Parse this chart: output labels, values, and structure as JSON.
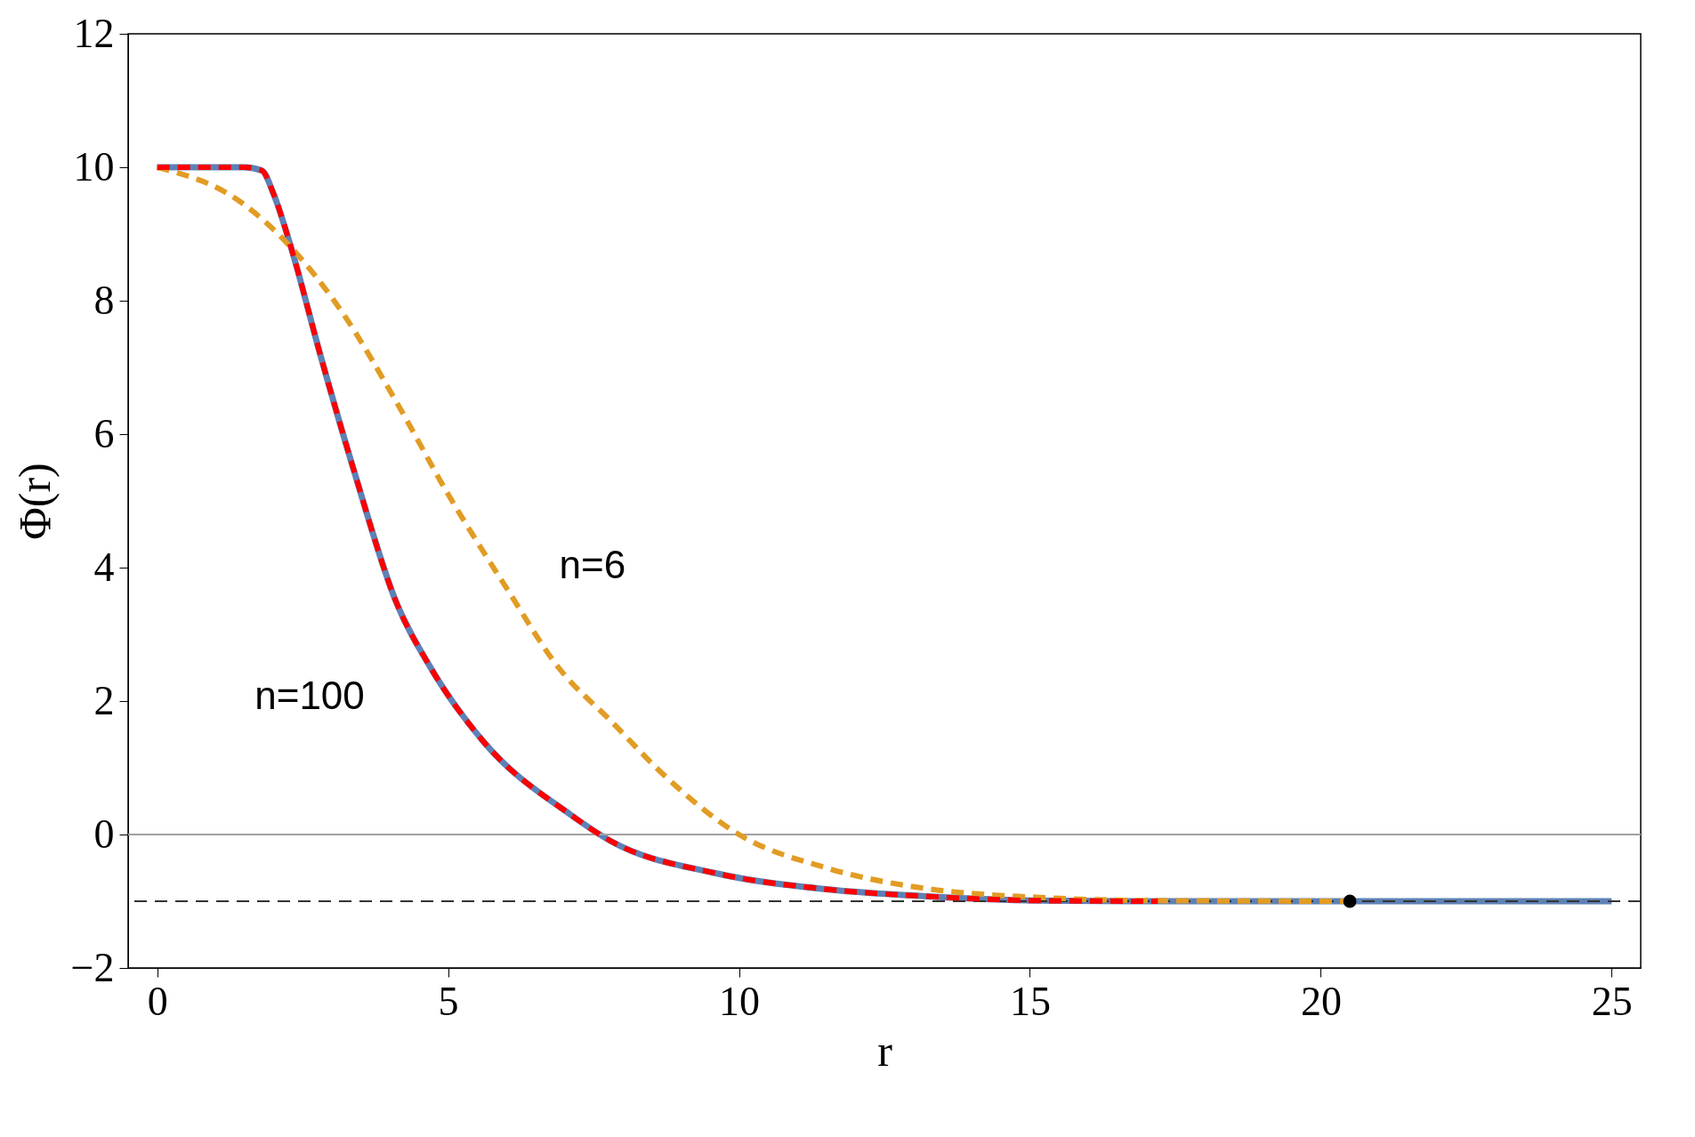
{
  "chart_data": {
    "type": "line",
    "xlabel": "r",
    "ylabel": "Φ(r)",
    "xlim": [
      -0.5,
      25.5
    ],
    "ylim": [
      -2,
      12
    ],
    "xticks": [
      0,
      5,
      10,
      15,
      20,
      25
    ],
    "yticks": [
      -2,
      0,
      2,
      4,
      6,
      8,
      10,
      12
    ],
    "grid": false,
    "series": [
      {
        "color": "#5e81b5",
        "line_style": "solid",
        "x": [
          0,
          1.5,
          1.8,
          2.0,
          2.3,
          2.8,
          3.4,
          4.1,
          4.7,
          5.6,
          7.1,
          7.8,
          9.6,
          11.5,
          13.3,
          15.1,
          17,
          20,
          25
        ],
        "values": [
          10,
          10,
          9.95,
          9.6,
          8.8,
          7.2,
          5.4,
          3.5,
          2.5,
          1.4,
          0.3,
          -0.1,
          -0.58,
          -0.82,
          -0.93,
          -0.99,
          -1,
          -1,
          -1
        ]
      },
      {
        "color": "#e19c24",
        "line_style": "dashed",
        "x": [
          0,
          1.4,
          2.3,
          3.2,
          4.1,
          5.0,
          6.0,
          6.9,
          7.8,
          8.7,
          10.0,
          11.5,
          13.3,
          15.1,
          17,
          20.5
        ],
        "values": [
          10,
          9.5,
          8.8,
          7.8,
          6.5,
          5.1,
          3.7,
          2.5,
          1.7,
          0.9,
          0,
          -0.5,
          -0.82,
          -0.94,
          -0.99,
          -1
        ]
      },
      {
        "color": "#ff0000",
        "line_style": "dashed",
        "x": [
          0,
          1.5,
          1.8,
          2.0,
          2.3,
          2.8,
          3.4,
          4.1,
          4.7,
          5.6,
          7.1,
          7.8,
          9.6,
          11.5,
          13.3,
          15.1,
          17.2
        ],
        "values": [
          10,
          10,
          9.95,
          9.6,
          8.8,
          7.2,
          5.4,
          3.5,
          2.5,
          1.4,
          0.3,
          -0.1,
          -0.58,
          -0.82,
          -0.93,
          -0.99,
          -1
        ]
      },
      {
        "type": "scatter",
        "marker": "circle",
        "color": "#000000",
        "x": [
          20.5
        ],
        "values": [
          -1
        ]
      }
    ],
    "ref_lines": [
      {
        "axis": "y",
        "value": 0,
        "color": "#a0a0a0",
        "line_style": "solid"
      },
      {
        "axis": "y",
        "value": -1,
        "color": "#333333",
        "line_style": "dashed"
      }
    ],
    "annotations": [
      "n=6",
      "n=100"
    ]
  }
}
